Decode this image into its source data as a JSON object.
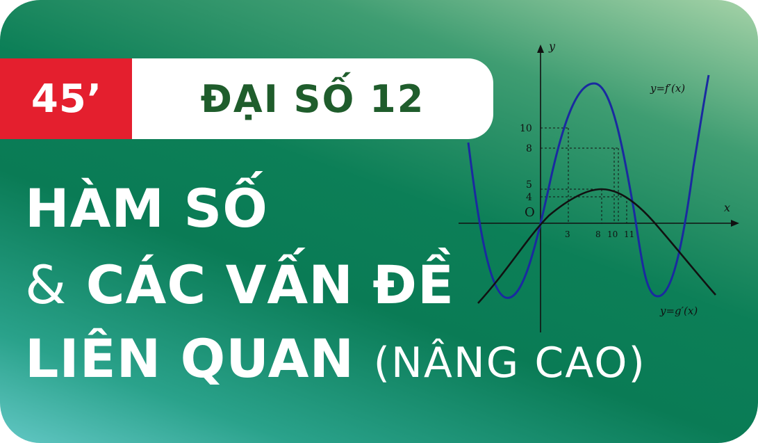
{
  "badge": {
    "duration": "45’",
    "subject": "ĐẠI SỐ 12"
  },
  "title": {
    "line1": "HÀM SỐ",
    "line2_amp": "&",
    "line2_rest": "CÁC VẤN ĐỀ",
    "line3_bold": "LIÊN QUAN",
    "line3_thin": "(NÂNG CAO)"
  },
  "graph": {
    "x_axis_label": "x",
    "y_axis_label": "y",
    "origin_label": "O",
    "f_label": "y=f′(x)",
    "g_label": "y=g′(x)",
    "y_ticks": [
      "10",
      "8",
      "5",
      "4"
    ],
    "x_ticks": [
      "3",
      "8",
      "10",
      "11"
    ]
  },
  "colors": {
    "red": "#e41f2e",
    "dark_green": "#1f5d2c",
    "f_curve": "#1a2aa0",
    "g_curve": "#111111"
  }
}
